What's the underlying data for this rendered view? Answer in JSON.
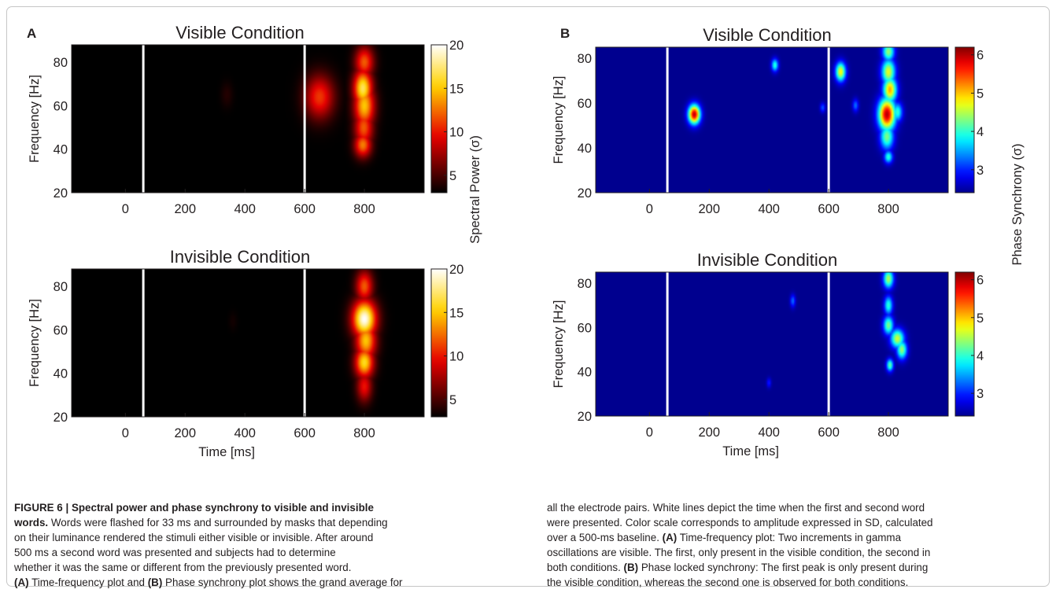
{
  "chart_data": [
    {
      "type": "heatmap",
      "panel": "A",
      "title": "Visible Condition",
      "xlabel": "",
      "ylabel": "Frequency [Hz]",
      "xlim": [
        -180,
        1000
      ],
      "ylim": [
        20,
        88
      ],
      "x_ticks": [
        0,
        200,
        400,
        600,
        800
      ],
      "y_ticks": [
        20,
        40,
        60,
        80
      ],
      "marker_lines_ms": [
        60,
        600
      ],
      "colormap": "hot",
      "colorbar": {
        "label": "Spectral Power (σ)",
        "min": 3,
        "max": 20,
        "ticks": [
          5,
          10,
          15,
          20
        ]
      },
      "blobs": [
        {
          "t": 340,
          "f": 65,
          "st": 14,
          "sf": 4,
          "v": 4
        },
        {
          "t": 650,
          "f": 64,
          "st": 34,
          "sf": 7,
          "v": 11
        },
        {
          "t": 800,
          "f": 80,
          "st": 22,
          "sf": 5,
          "v": 12
        },
        {
          "t": 795,
          "f": 68,
          "st": 22,
          "sf": 6,
          "v": 17
        },
        {
          "t": 800,
          "f": 60,
          "st": 24,
          "sf": 7,
          "v": 15
        },
        {
          "t": 798,
          "f": 50,
          "st": 22,
          "sf": 6,
          "v": 12
        },
        {
          "t": 795,
          "f": 42,
          "st": 20,
          "sf": 4,
          "v": 13
        }
      ]
    },
    {
      "type": "heatmap",
      "panel": "A",
      "title": "Invisible Condition",
      "xlabel": "Time [ms]",
      "ylabel": "Frequency [Hz]",
      "xlim": [
        -180,
        1000
      ],
      "ylim": [
        20,
        88
      ],
      "x_ticks": [
        0,
        200,
        400,
        600,
        800
      ],
      "y_ticks": [
        20,
        40,
        60,
        80
      ],
      "marker_lines_ms": [
        60,
        600
      ],
      "colormap": "hot",
      "colorbar": {
        "label": "",
        "min": 3,
        "max": 20,
        "ticks": [
          5,
          10,
          15,
          20
        ]
      },
      "blobs": [
        {
          "t": 360,
          "f": 64,
          "st": 10,
          "sf": 3,
          "v": 3.5
        },
        {
          "t": 800,
          "f": 80,
          "st": 20,
          "sf": 5,
          "v": 12
        },
        {
          "t": 800,
          "f": 65,
          "st": 28,
          "sf": 6,
          "v": 20
        },
        {
          "t": 805,
          "f": 55,
          "st": 24,
          "sf": 6,
          "v": 15
        },
        {
          "t": 800,
          "f": 45,
          "st": 22,
          "sf": 5,
          "v": 16
        },
        {
          "t": 800,
          "f": 34,
          "st": 18,
          "sf": 5,
          "v": 10
        }
      ]
    },
    {
      "type": "heatmap",
      "panel": "B",
      "title": "Visible Condition",
      "xlabel": "",
      "ylabel": "Frequency [Hz]",
      "xlim": [
        -180,
        1000
      ],
      "ylim": [
        20,
        85
      ],
      "x_ticks": [
        0,
        200,
        400,
        600,
        800
      ],
      "y_ticks": [
        20,
        40,
        60,
        80
      ],
      "marker_lines_ms": [
        60,
        600
      ],
      "colormap": "jet",
      "colorbar": {
        "label": "Phase Synchrony (σ)",
        "min": 2.4,
        "max": 6.2,
        "ticks": [
          3,
          4,
          5,
          6
        ]
      },
      "blobs": [
        {
          "t": 150,
          "f": 55,
          "st": 14,
          "sf": 3,
          "v": 6
        },
        {
          "t": 420,
          "f": 77,
          "st": 8,
          "sf": 2,
          "v": 4
        },
        {
          "t": 580,
          "f": 58,
          "st": 6,
          "sf": 1.5,
          "v": 3.2
        },
        {
          "t": 640,
          "f": 74,
          "st": 12,
          "sf": 3,
          "v": 4.8
        },
        {
          "t": 690,
          "f": 59,
          "st": 7,
          "sf": 2,
          "v": 3.3
        },
        {
          "t": 800,
          "f": 83,
          "st": 14,
          "sf": 3,
          "v": 4.4
        },
        {
          "t": 800,
          "f": 74,
          "st": 16,
          "sf": 4,
          "v": 4.7
        },
        {
          "t": 805,
          "f": 66,
          "st": 16,
          "sf": 4,
          "v": 5.1
        },
        {
          "t": 795,
          "f": 55,
          "st": 20,
          "sf": 5,
          "v": 6
        },
        {
          "t": 830,
          "f": 56,
          "st": 12,
          "sf": 3,
          "v": 4
        },
        {
          "t": 795,
          "f": 45,
          "st": 16,
          "sf": 4,
          "v": 4.3
        },
        {
          "t": 800,
          "f": 36,
          "st": 10,
          "sf": 2,
          "v": 4
        }
      ]
    },
    {
      "type": "heatmap",
      "panel": "B",
      "title": "Invisible Condition",
      "xlabel": "Time [ms]",
      "ylabel": "Frequency [Hz]",
      "xlim": [
        -180,
        1000
      ],
      "ylim": [
        20,
        85
      ],
      "x_ticks": [
        0,
        200,
        400,
        600,
        800
      ],
      "y_ticks": [
        20,
        40,
        60,
        80
      ],
      "marker_lines_ms": [
        60,
        600
      ],
      "colormap": "jet",
      "colorbar": {
        "label": "",
        "min": 2.4,
        "max": 6.2,
        "ticks": [
          3,
          4,
          5,
          6
        ]
      },
      "blobs": [
        {
          "t": 480,
          "f": 72,
          "st": 6,
          "sf": 2,
          "v": 3.3
        },
        {
          "t": 400,
          "f": 35,
          "st": 5,
          "sf": 1.5,
          "v": 3
        },
        {
          "t": 800,
          "f": 82,
          "st": 12,
          "sf": 3,
          "v": 4.5
        },
        {
          "t": 800,
          "f": 70,
          "st": 10,
          "sf": 3,
          "v": 4
        },
        {
          "t": 800,
          "f": 61,
          "st": 12,
          "sf": 3,
          "v": 4.3
        },
        {
          "t": 830,
          "f": 55,
          "st": 16,
          "sf": 3,
          "v": 4.6
        },
        {
          "t": 845,
          "f": 50,
          "st": 12,
          "sf": 3,
          "v": 4.4
        },
        {
          "t": 805,
          "f": 43,
          "st": 8,
          "sf": 2,
          "v": 4.2
        }
      ]
    }
  ],
  "panel_labels": [
    "A",
    "B"
  ],
  "caption": {
    "left": [
      [
        {
          "t": "FIGURE 6 | Spectral power and phase synchrony to visible and invisible",
          "b": true
        }
      ],
      [
        {
          "t": "words.",
          "b": true
        },
        {
          "t": " Words were flashed for 33 ms and surrounded by masks that depending",
          "b": false
        }
      ],
      [
        {
          "t": "on their luminance rendered the stimuli either visible or invisible. After around",
          "b": false
        }
      ],
      [
        {
          "t": "500 ms a second word was presented and subjects had to determine",
          "b": false
        }
      ],
      [
        {
          "t": "whether it was the same or different from the previously presented word.",
          "b": false
        }
      ],
      [
        {
          "t": "(A)",
          "b": true
        },
        {
          "t": " Time-frequency plot and ",
          "b": false
        },
        {
          "t": "(B)",
          "b": true
        },
        {
          "t": " Phase synchrony plot shows the grand average for",
          "b": false
        }
      ]
    ],
    "right": [
      [
        {
          "t": "all the electrode pairs. White lines depict the time when the first and second word",
          "b": false
        }
      ],
      [
        {
          "t": "were presented. Color scale corresponds to amplitude expressed in SD, calculated",
          "b": false
        }
      ],
      [
        {
          "t": "over a 500-ms baseline. ",
          "b": false
        },
        {
          "t": "(A)",
          "b": true
        },
        {
          "t": " Time-frequency plot: Two increments in gamma",
          "b": false
        }
      ],
      [
        {
          "t": "oscillations are visible. The first, only present in the visible condition, the second in",
          "b": false
        }
      ],
      [
        {
          "t": "both conditions. ",
          "b": false
        },
        {
          "t": "(B)",
          "b": true
        },
        {
          "t": " Phase locked synchrony: The first peak is only present during",
          "b": false
        }
      ],
      [
        {
          "t": "the visible condition, whereas the second one is observed for both conditions.",
          "b": false
        }
      ]
    ]
  }
}
